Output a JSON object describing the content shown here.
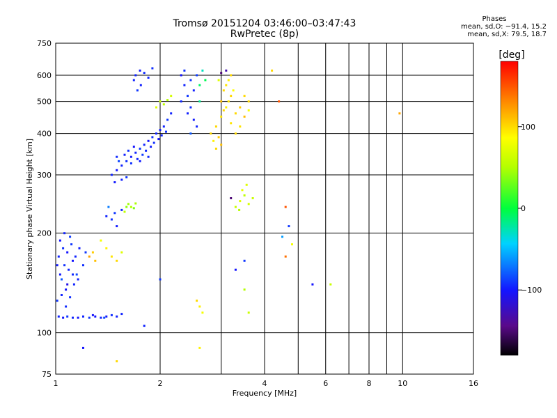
{
  "header": {
    "title": "Tromsø 20151204 03:46:00–03:47:43",
    "subtitle": "RwPretec (8p)"
  },
  "stats": {
    "heading": "Phases",
    "line_o": "mean, sd,O: −91.4, 15.2",
    "line_x": "mean, sd,X:  79.5, 18.7"
  },
  "colorbar": {
    "unit_label": "[deg]",
    "ticks": [
      {
        "value": 100,
        "label": "100"
      },
      {
        "value": 0,
        "label": "0"
      },
      {
        "value": -100,
        "label": "−100"
      }
    ],
    "range": [
      -180,
      180
    ]
  },
  "chart_data": {
    "type": "scatter",
    "xlabel": "Frequency [MHz]",
    "ylabel": "Stationary phase Virtual Height [km]",
    "xscale": "log",
    "yscale": "log",
    "xlim": [
      1,
      16
    ],
    "ylim": [
      75,
      750
    ],
    "x_ticks": [
      {
        "value": 1,
        "label": "1"
      },
      {
        "value": 2,
        "label": "2"
      },
      {
        "value": 4,
        "label": "4"
      },
      {
        "value": 6,
        "label": "6"
      },
      {
        "value": 8,
        "label": "8"
      },
      {
        "value": 10,
        "label": "10"
      },
      {
        "value": 16,
        "label": "16"
      }
    ],
    "x_minor": [
      3,
      5,
      7,
      9
    ],
    "y_ticks": [
      {
        "value": 75,
        "label": "75"
      },
      {
        "value": 100,
        "label": "100"
      },
      {
        "value": 200,
        "label": "200"
      },
      {
        "value": 300,
        "label": "300"
      },
      {
        "value": 400,
        "label": "400"
      },
      {
        "value": 500,
        "label": "500"
      },
      {
        "value": 600,
        "label": "600"
      },
      {
        "value": 750,
        "label": "750"
      }
    ],
    "y_minor": [],
    "grid": true,
    "points": [
      [
        1.02,
        112,
        -95
      ],
      [
        1.05,
        111,
        -100
      ],
      [
        1.08,
        112,
        -90
      ],
      [
        1.12,
        111,
        -95
      ],
      [
        1.16,
        111,
        -100
      ],
      [
        1.2,
        112,
        -95
      ],
      [
        1.25,
        111,
        -90
      ],
      [
        1.3,
        112,
        -100
      ],
      [
        1.35,
        111,
        -95
      ],
      [
        1.4,
        112,
        -98
      ],
      [
        1.45,
        113,
        -92
      ],
      [
        1.5,
        112,
        -96
      ],
      [
        1.55,
        114,
        -95
      ],
      [
        1.38,
        111,
        -85
      ],
      [
        1.28,
        113,
        -102
      ],
      [
        1.01,
        125,
        -90
      ],
      [
        1.04,
        130,
        -95
      ],
      [
        1.07,
        135,
        -100
      ],
      [
        1.1,
        128,
        -92
      ],
      [
        1.13,
        140,
        -95
      ],
      [
        1.03,
        150,
        -98
      ],
      [
        1.06,
        160,
        -92
      ],
      [
        1.09,
        155,
        -95
      ],
      [
        1.12,
        165,
        -100
      ],
      [
        1.15,
        150,
        -85
      ],
      [
        1.02,
        170,
        -95
      ],
      [
        1.05,
        180,
        -92
      ],
      [
        1.08,
        175,
        -100
      ],
      [
        1.11,
        185,
        -90
      ],
      [
        1.14,
        170,
        -95
      ],
      [
        1.03,
        190,
        -100
      ],
      [
        1.06,
        200,
        -95
      ],
      [
        1.1,
        195,
        -88
      ],
      [
        1.17,
        180,
        -96
      ],
      [
        1.2,
        160,
        -92
      ],
      [
        1.04,
        145,
        -80
      ],
      [
        1.08,
        140,
        -110
      ],
      [
        1.12,
        150,
        -94
      ],
      [
        1.16,
        145,
        -96
      ],
      [
        1.01,
        160,
        -98
      ],
      [
        1.07,
        120,
        -93
      ],
      [
        1.22,
        175,
        -90
      ],
      [
        1.25,
        170,
        120
      ],
      [
        1.3,
        165,
        110
      ],
      [
        1.28,
        175,
        105
      ],
      [
        1.4,
        180,
        90
      ],
      [
        1.45,
        170,
        95
      ],
      [
        1.5,
        165,
        100
      ],
      [
        1.35,
        190,
        80
      ],
      [
        1.55,
        175,
        70
      ],
      [
        1.4,
        225,
        -95
      ],
      [
        1.45,
        220,
        -92
      ],
      [
        1.5,
        210,
        -98
      ],
      [
        1.48,
        230,
        -90
      ],
      [
        1.55,
        235,
        -95
      ],
      [
        1.6,
        240,
        40
      ],
      [
        1.62,
        245,
        45
      ],
      [
        1.65,
        240,
        50
      ],
      [
        1.68,
        238,
        35
      ],
      [
        1.7,
        246,
        48
      ],
      [
        1.58,
        232,
        55
      ],
      [
        1.42,
        240,
        -70
      ],
      [
        1.45,
        300,
        -95
      ],
      [
        1.5,
        310,
        -100
      ],
      [
        1.55,
        320,
        -95
      ],
      [
        1.6,
        330,
        -92
      ],
      [
        1.65,
        340,
        -98
      ],
      [
        1.7,
        350,
        -95
      ],
      [
        1.75,
        360,
        -90
      ],
      [
        1.8,
        370,
        -95
      ],
      [
        1.85,
        380,
        -100
      ],
      [
        1.9,
        390,
        -92
      ],
      [
        1.95,
        400,
        -95
      ],
      [
        2.0,
        410,
        -98
      ],
      [
        2.05,
        420,
        -95
      ],
      [
        2.1,
        440,
        -90
      ],
      [
        2.15,
        460,
        -95
      ],
      [
        1.52,
        330,
        -85
      ],
      [
        1.58,
        345,
        -96
      ],
      [
        1.62,
        355,
        -92
      ],
      [
        1.68,
        365,
        -100
      ],
      [
        1.72,
        335,
        -95
      ],
      [
        1.78,
        345,
        -88
      ],
      [
        1.82,
        355,
        -94
      ],
      [
        1.88,
        365,
        -96
      ],
      [
        1.92,
        375,
        -92
      ],
      [
        1.98,
        385,
        -100
      ],
      [
        2.02,
        395,
        -95
      ],
      [
        2.08,
        405,
        -92
      ],
      [
        1.55,
        290,
        -96
      ],
      [
        1.6,
        295,
        -90
      ],
      [
        1.48,
        285,
        -98
      ],
      [
        1.5,
        340,
        -93
      ],
      [
        1.65,
        325,
        -91
      ],
      [
        1.75,
        330,
        -97
      ],
      [
        1.85,
        340,
        -94
      ],
      [
        1.7,
        600,
        -95
      ],
      [
        1.75,
        620,
        -98
      ],
      [
        1.8,
        610,
        -92
      ],
      [
        1.68,
        580,
        -95
      ],
      [
        1.72,
        540,
        -90
      ],
      [
        1.76,
        560,
        -96
      ],
      [
        1.85,
        590,
        -94
      ],
      [
        1.9,
        630,
        -92
      ],
      [
        2.0,
        500,
        60
      ],
      [
        2.05,
        490,
        55
      ],
      [
        2.1,
        505,
        50
      ],
      [
        2.15,
        520,
        65
      ],
      [
        1.95,
        480,
        70
      ],
      [
        2.3,
        600,
        -100
      ],
      [
        2.35,
        560,
        -95
      ],
      [
        2.4,
        520,
        -90
      ],
      [
        2.45,
        480,
        -92
      ],
      [
        2.5,
        440,
        -98
      ],
      [
        2.55,
        420,
        -95
      ],
      [
        2.3,
        500,
        -94
      ],
      [
        2.4,
        460,
        -96
      ],
      [
        2.35,
        620,
        -92
      ],
      [
        2.45,
        580,
        -90
      ],
      [
        2.5,
        540,
        -96
      ],
      [
        2.55,
        600,
        -88
      ],
      [
        2.6,
        560,
        -10
      ],
      [
        2.65,
        620,
        -30
      ],
      [
        2.7,
        580,
        -5
      ],
      [
        2.6,
        500,
        -20
      ],
      [
        2.45,
        400,
        -80
      ],
      [
        2.8,
        400,
        100
      ],
      [
        2.85,
        380,
        90
      ],
      [
        2.9,
        420,
        100
      ],
      [
        2.95,
        390,
        105
      ],
      [
        3.0,
        450,
        95
      ],
      [
        3.05,
        470,
        100
      ],
      [
        3.1,
        480,
        90
      ],
      [
        3.15,
        500,
        95
      ],
      [
        3.2,
        520,
        100
      ],
      [
        3.25,
        540,
        85
      ],
      [
        3.0,
        500,
        110
      ],
      [
        3.05,
        540,
        100
      ],
      [
        3.1,
        560,
        95
      ],
      [
        3.15,
        580,
        90
      ],
      [
        3.2,
        600,
        100
      ],
      [
        2.95,
        580,
        70
      ],
      [
        3.0,
        610,
        -150
      ],
      [
        3.1,
        620,
        -130
      ],
      [
        3.3,
        460,
        100
      ],
      [
        3.4,
        480,
        105
      ],
      [
        3.5,
        450,
        110
      ],
      [
        3.6,
        500,
        100
      ],
      [
        3.2,
        430,
        95
      ],
      [
        2.9,
        360,
        100
      ],
      [
        3.0,
        370,
        110
      ],
      [
        3.3,
        400,
        100
      ],
      [
        3.4,
        420,
        95
      ],
      [
        3.5,
        520,
        100
      ],
      [
        3.6,
        470,
        80
      ],
      [
        3.3,
        240,
        60
      ],
      [
        3.4,
        250,
        70
      ],
      [
        3.5,
        260,
        55
      ],
      [
        3.6,
        245,
        65
      ],
      [
        3.7,
        255,
        60
      ],
      [
        3.45,
        270,
        75
      ],
      [
        3.55,
        280,
        70
      ],
      [
        3.38,
        235,
        50
      ],
      [
        3.2,
        255,
        -150
      ],
      [
        2.6,
        120,
        90
      ],
      [
        2.55,
        125,
        100
      ],
      [
        2.65,
        115,
        80
      ],
      [
        2.6,
        90,
        90
      ],
      [
        4.6,
        240,
        150
      ],
      [
        4.7,
        210,
        -90
      ],
      [
        4.5,
        195,
        -60
      ],
      [
        4.6,
        170,
        140
      ],
      [
        4.8,
        185,
        80
      ],
      [
        5.5,
        140,
        -100
      ],
      [
        6.2,
        140,
        60
      ],
      [
        9.8,
        460,
        120
      ],
      [
        4.2,
        620,
        100
      ],
      [
        4.4,
        500,
        150
      ],
      [
        1.2,
        90,
        -100
      ],
      [
        1.5,
        82,
        100
      ],
      [
        1.8,
        105,
        -95
      ],
      [
        2.0,
        145,
        -90
      ],
      [
        3.5,
        165,
        -90
      ],
      [
        3.3,
        155,
        -100
      ],
      [
        3.5,
        135,
        50
      ],
      [
        3.6,
        115,
        60
      ]
    ]
  }
}
